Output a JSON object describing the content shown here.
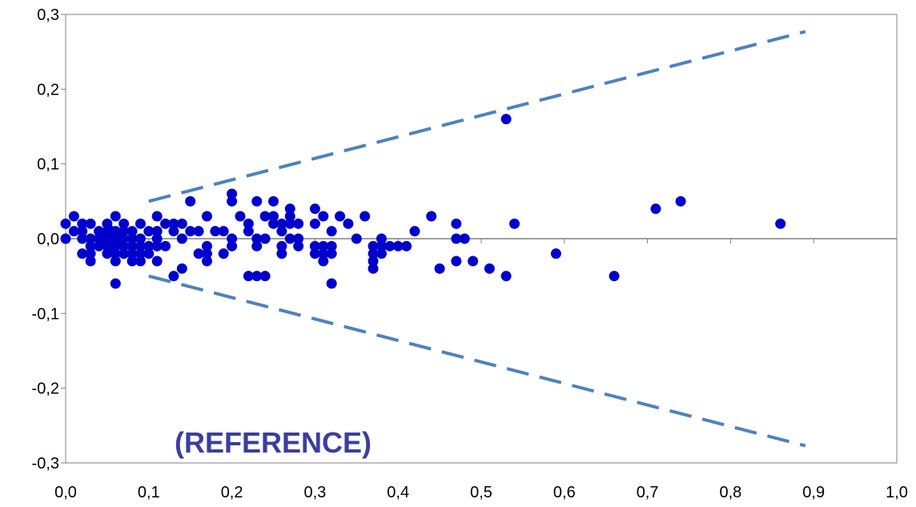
{
  "chart_data": {
    "type": "scatter",
    "title": "",
    "xlabel": "",
    "ylabel": "",
    "xlim": [
      0.0,
      1.0
    ],
    "ylim": [
      -0.3,
      0.3
    ],
    "x_ticks": [
      "0,0",
      "0,1",
      "0,2",
      "0,3",
      "0,4",
      "0,5",
      "0,6",
      "0,7",
      "0,8",
      "0,9",
      "1,0"
    ],
    "y_ticks": [
      "0,3",
      "0,2",
      "0,1",
      "0,0",
      "-0,1",
      "-0,2",
      "-0,3"
    ],
    "x_tick_values": [
      0.0,
      0.1,
      0.2,
      0.3,
      0.4,
      0.5,
      0.6,
      0.7,
      0.8,
      0.9,
      1.0
    ],
    "y_tick_values": [
      0.3,
      0.2,
      0.1,
      0.0,
      -0.1,
      -0.2,
      -0.3
    ],
    "grid": false,
    "annotation": "(REFERENCE)",
    "colors": {
      "points": "#0000cc",
      "dashed": "#4f81bd",
      "annotation": "#3b3f9b",
      "axis": "#808080"
    },
    "reference_lines": [
      {
        "x": [
          0.1,
          0.89
        ],
        "y": [
          0.05,
          0.277
        ]
      },
      {
        "x": [
          0.1,
          0.89
        ],
        "y": [
          -0.05,
          -0.277
        ]
      }
    ],
    "points": [
      [
        0.0,
        0.02
      ],
      [
        0.0,
        0.0
      ],
      [
        0.01,
        0.03
      ],
      [
        0.01,
        0.01
      ],
      [
        0.02,
        0.02
      ],
      [
        0.02,
        0.0
      ],
      [
        0.02,
        -0.02
      ],
      [
        0.02,
        0.01
      ],
      [
        0.03,
        0.02
      ],
      [
        0.03,
        0.0
      ],
      [
        0.03,
        -0.01
      ],
      [
        0.03,
        -0.02
      ],
      [
        0.03,
        -0.03
      ],
      [
        0.04,
        0.01
      ],
      [
        0.04,
        0.0
      ],
      [
        0.04,
        -0.01
      ],
      [
        0.045,
        0.0
      ],
      [
        0.05,
        0.02
      ],
      [
        0.05,
        0.01
      ],
      [
        0.05,
        0.0
      ],
      [
        0.05,
        -0.01
      ],
      [
        0.05,
        -0.02
      ],
      [
        0.055,
        0.01
      ],
      [
        0.055,
        -0.01
      ],
      [
        0.06,
        0.03
      ],
      [
        0.06,
        0.01
      ],
      [
        0.06,
        0.0
      ],
      [
        0.06,
        -0.01
      ],
      [
        0.06,
        -0.02
      ],
      [
        0.06,
        -0.03
      ],
      [
        0.06,
        -0.06
      ],
      [
        0.065,
        0.0
      ],
      [
        0.07,
        0.02
      ],
      [
        0.07,
        0.01
      ],
      [
        0.07,
        0.0
      ],
      [
        0.07,
        -0.01
      ],
      [
        0.07,
        -0.02
      ],
      [
        0.08,
        0.01
      ],
      [
        0.08,
        0.0
      ],
      [
        0.08,
        -0.01
      ],
      [
        0.08,
        -0.02
      ],
      [
        0.08,
        -0.03
      ],
      [
        0.09,
        0.02
      ],
      [
        0.09,
        0.0
      ],
      [
        0.09,
        -0.01
      ],
      [
        0.09,
        -0.02
      ],
      [
        0.09,
        -0.03
      ],
      [
        0.1,
        0.01
      ],
      [
        0.1,
        -0.01
      ],
      [
        0.1,
        -0.02
      ],
      [
        0.11,
        0.03
      ],
      [
        0.11,
        0.01
      ],
      [
        0.11,
        0.0
      ],
      [
        0.11,
        -0.01
      ],
      [
        0.11,
        -0.03
      ],
      [
        0.12,
        0.02
      ],
      [
        0.12,
        -0.01
      ],
      [
        0.13,
        0.02
      ],
      [
        0.13,
        0.01
      ],
      [
        0.13,
        -0.05
      ],
      [
        0.14,
        0.02
      ],
      [
        0.14,
        0.0
      ],
      [
        0.14,
        -0.04
      ],
      [
        0.15,
        0.05
      ],
      [
        0.15,
        0.01
      ],
      [
        0.16,
        0.01
      ],
      [
        0.16,
        -0.02
      ],
      [
        0.17,
        0.03
      ],
      [
        0.17,
        -0.01
      ],
      [
        0.17,
        -0.02
      ],
      [
        0.17,
        -0.03
      ],
      [
        0.18,
        0.01
      ],
      [
        0.19,
        0.01
      ],
      [
        0.19,
        -0.02
      ],
      [
        0.2,
        0.06
      ],
      [
        0.2,
        0.05
      ],
      [
        0.2,
        0.0
      ],
      [
        0.2,
        -0.01
      ],
      [
        0.21,
        0.03
      ],
      [
        0.22,
        0.02
      ],
      [
        0.22,
        0.01
      ],
      [
        0.22,
        -0.05
      ],
      [
        0.23,
        0.05
      ],
      [
        0.23,
        0.0
      ],
      [
        0.23,
        -0.01
      ],
      [
        0.23,
        -0.05
      ],
      [
        0.24,
        0.03
      ],
      [
        0.24,
        0.0
      ],
      [
        0.24,
        -0.05
      ],
      [
        0.25,
        0.05
      ],
      [
        0.25,
        0.03
      ],
      [
        0.25,
        0.02
      ],
      [
        0.26,
        0.02
      ],
      [
        0.26,
        0.01
      ],
      [
        0.26,
        -0.01
      ],
      [
        0.26,
        -0.02
      ],
      [
        0.27,
        0.04
      ],
      [
        0.27,
        0.03
      ],
      [
        0.27,
        0.02
      ],
      [
        0.27,
        0.0
      ],
      [
        0.28,
        0.02
      ],
      [
        0.28,
        0.0
      ],
      [
        0.28,
        -0.01
      ],
      [
        0.3,
        0.04
      ],
      [
        0.3,
        0.02
      ],
      [
        0.3,
        -0.01
      ],
      [
        0.3,
        -0.02
      ],
      [
        0.31,
        0.03
      ],
      [
        0.31,
        -0.01
      ],
      [
        0.31,
        -0.02
      ],
      [
        0.31,
        -0.03
      ],
      [
        0.32,
        0.01
      ],
      [
        0.32,
        -0.01
      ],
      [
        0.32,
        -0.02
      ],
      [
        0.32,
        -0.06
      ],
      [
        0.33,
        0.03
      ],
      [
        0.34,
        0.02
      ],
      [
        0.35,
        0.0
      ],
      [
        0.36,
        0.03
      ],
      [
        0.37,
        -0.01
      ],
      [
        0.37,
        -0.02
      ],
      [
        0.37,
        -0.03
      ],
      [
        0.37,
        -0.04
      ],
      [
        0.38,
        0.0
      ],
      [
        0.38,
        -0.01
      ],
      [
        0.38,
        -0.02
      ],
      [
        0.39,
        -0.01
      ],
      [
        0.4,
        -0.01
      ],
      [
        0.41,
        -0.01
      ],
      [
        0.42,
        0.01
      ],
      [
        0.44,
        0.03
      ],
      [
        0.45,
        -0.04
      ],
      [
        0.47,
        0.02
      ],
      [
        0.47,
        0.0
      ],
      [
        0.47,
        -0.03
      ],
      [
        0.48,
        0.0
      ],
      [
        0.49,
        -0.03
      ],
      [
        0.51,
        -0.04
      ],
      [
        0.53,
        0.16
      ],
      [
        0.53,
        -0.05
      ],
      [
        0.54,
        0.02
      ],
      [
        0.59,
        -0.02
      ],
      [
        0.66,
        -0.05
      ],
      [
        0.71,
        0.04
      ],
      [
        0.74,
        0.05
      ],
      [
        0.86,
        0.02
      ]
    ]
  }
}
